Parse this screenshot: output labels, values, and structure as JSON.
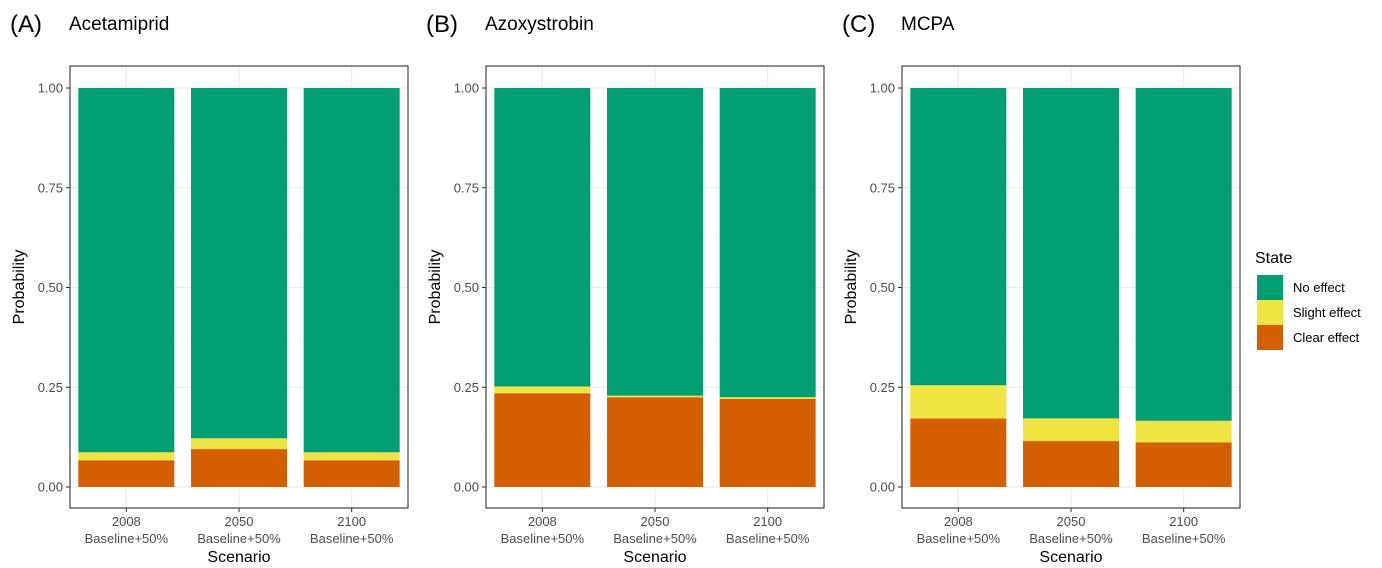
{
  "chart_data": [
    {
      "type": "bar",
      "stacked": true,
      "panel_label": "(A)",
      "title": "Acetamiprid",
      "xlabel": "Scenario",
      "ylabel": "Probability",
      "ylim": [
        0,
        1
      ],
      "yticks": [
        "0.00",
        "0.25",
        "0.50",
        "0.75",
        "1.00"
      ],
      "categories": [
        {
          "year": "2008",
          "scenario": "Baseline+50%"
        },
        {
          "year": "2050",
          "scenario": "Baseline+50%"
        },
        {
          "year": "2100",
          "scenario": "Baseline+50%"
        }
      ],
      "series": [
        {
          "name": "Clear effect",
          "values": [
            0.067,
            0.095,
            0.067
          ]
        },
        {
          "name": "Slight effect",
          "values": [
            0.02,
            0.027,
            0.02
          ]
        },
        {
          "name": "No effect",
          "values": [
            0.913,
            0.878,
            0.913
          ]
        }
      ],
      "grid": true
    },
    {
      "type": "bar",
      "stacked": true,
      "panel_label": "(B)",
      "title": "Azoxystrobin",
      "xlabel": "Scenario",
      "ylabel": "Probability",
      "ylim": [
        0,
        1
      ],
      "yticks": [
        "0.00",
        "0.25",
        "0.50",
        "0.75",
        "1.00"
      ],
      "categories": [
        {
          "year": "2008",
          "scenario": "Baseline+50%"
        },
        {
          "year": "2050",
          "scenario": "Baseline+50%"
        },
        {
          "year": "2100",
          "scenario": "Baseline+50%"
        }
      ],
      "series": [
        {
          "name": "Clear effect",
          "values": [
            0.235,
            0.225,
            0.221
          ]
        },
        {
          "name": "Slight effect",
          "values": [
            0.017,
            0.004,
            0.004
          ]
        },
        {
          "name": "No effect",
          "values": [
            0.748,
            0.771,
            0.775
          ]
        }
      ],
      "grid": true
    },
    {
      "type": "bar",
      "stacked": true,
      "panel_label": "(C)",
      "title": "MCPA",
      "xlabel": "Scenario",
      "ylabel": "Probability",
      "ylim": [
        0,
        1
      ],
      "yticks": [
        "0.00",
        "0.25",
        "0.50",
        "0.75",
        "1.00"
      ],
      "categories": [
        {
          "year": "2008",
          "scenario": "Baseline+50%"
        },
        {
          "year": "2050",
          "scenario": "Baseline+50%"
        },
        {
          "year": "2100",
          "scenario": "Baseline+50%"
        }
      ],
      "series": [
        {
          "name": "Clear effect",
          "values": [
            0.172,
            0.115,
            0.112
          ]
        },
        {
          "name": "Slight effect",
          "values": [
            0.083,
            0.057,
            0.054
          ]
        },
        {
          "name": "No effect",
          "values": [
            0.745,
            0.828,
            0.834
          ]
        }
      ],
      "grid": true
    }
  ],
  "legend": {
    "title": "State",
    "placement": "right",
    "items": [
      {
        "name": "No effect",
        "color": "#009E73"
      },
      {
        "name": "Slight effect",
        "color": "#F0E442"
      },
      {
        "name": "Clear effect",
        "color": "#D55E00"
      }
    ]
  },
  "colors": {
    "No effect": "#009E73",
    "Slight effect": "#F0E442",
    "Clear effect": "#D55E00"
  }
}
